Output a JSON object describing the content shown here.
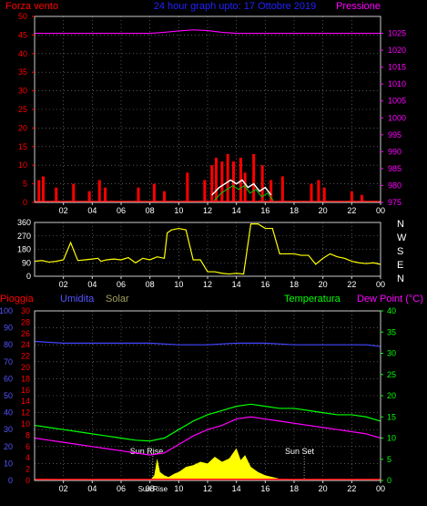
{
  "panel_top": {
    "label_left": "Forza vento",
    "title": "24 hour graph upto: 17 Ottobre 2019",
    "label_right": "Pressione"
  },
  "panel_mid": {
    "compass": [
      "N",
      "W",
      "S",
      "E",
      "N"
    ]
  },
  "panel_bottom": {
    "label_rain": "Pioggia",
    "label_humidity": "Umidita",
    "label_solar": "Solar",
    "label_temperature": "Temperatura",
    "label_dewpoint": "Dew Point (°C)",
    "sunrise": "Sun Rise",
    "sunset": "Sun Set",
    "sunrise_time_label": "Sun Rise"
  },
  "colors": {
    "wind": "#ff0000",
    "gust": "#ffffff",
    "wind_alt": "#00cc00",
    "pressure": "#ff00ff",
    "direction": "#ffff00",
    "rain": "#ff0000",
    "humidity": "#4444ff",
    "solar": "#ffff00",
    "temperature": "#00ff00",
    "dewpoint": "#ff00ff",
    "grid": "#888888"
  },
  "chart_data": [
    {
      "type": "line",
      "title": "24 hour graph upto: 17 Ottobre 2019",
      "ylabel_left": "Forza vento",
      "ylabel_right": "Pressione",
      "x_ticks": [
        "02",
        "04",
        "06",
        "08",
        "10",
        "12",
        "14",
        "16",
        "18",
        "20",
        "22",
        "00"
      ],
      "ylim_left": [
        0,
        50
      ],
      "y_ticks_left": [
        0,
        5,
        10,
        15,
        20,
        25,
        30,
        35,
        40,
        45,
        50
      ],
      "ylim_right": [
        975,
        1030
      ],
      "y_ticks_right": [
        975,
        980,
        985,
        990,
        995,
        1000,
        1005,
        1010,
        1015,
        1020,
        1025
      ],
      "grid": true,
      "series": [
        {
          "name": "Pressione",
          "axis": "right",
          "x": [
            0,
            2,
            4,
            6,
            8,
            9,
            10,
            11,
            12,
            13,
            14,
            16,
            18,
            20,
            22,
            24
          ],
          "values": [
            1025,
            1025,
            1025,
            1025,
            1025,
            1025.3,
            1025.7,
            1026,
            1025.8,
            1025.3,
            1025,
            1025,
            1025,
            1025,
            1025,
            1025
          ]
        }
      ],
      "wind_gust_bars": {
        "x": [
          0.3,
          0.6,
          1.5,
          2.7,
          3.8,
          4.5,
          4.9,
          7.2,
          8.3,
          9.0,
          10.6,
          11.8,
          12.3,
          12.6,
          13.0,
          13.4,
          13.8,
          14.3,
          14.6,
          15.2,
          15.8,
          16.4,
          17.2,
          19.2,
          19.7,
          20.1,
          22.0,
          22.7
        ],
        "values": [
          6,
          7,
          4,
          5,
          3,
          6,
          4,
          4,
          5,
          3,
          8,
          6,
          10,
          12,
          11,
          13,
          11,
          12,
          8,
          13,
          10,
          6,
          7,
          5,
          6,
          4,
          3,
          2
        ]
      },
      "wind_avg_white": {
        "x": [
          12.3,
          12.8,
          13.2,
          13.6,
          14.0,
          14.4,
          14.8,
          15.2,
          15.6,
          16.0,
          16.4
        ],
        "values": [
          2,
          4,
          5,
          6,
          5,
          6,
          4,
          5,
          3,
          4,
          2
        ]
      }
    },
    {
      "type": "line",
      "name": "Direzione vento",
      "x_ticks": [
        "02",
        "04",
        "06",
        "08",
        "10",
        "12",
        "14",
        "16",
        "18",
        "20",
        "22",
        "00"
      ],
      "ylim": [
        0,
        360
      ],
      "y_ticks": [
        0,
        90,
        180,
        270,
        360
      ],
      "grid": true,
      "series": [
        {
          "name": "direction",
          "x": [
            0,
            0.5,
            1,
            1.5,
            2,
            2.5,
            3,
            3.5,
            4,
            4.4,
            4.6,
            5,
            5.5,
            6,
            6.5,
            7,
            7.5,
            8,
            8.5,
            9,
            9.2,
            9.5,
            10,
            10.5,
            11,
            11.5,
            12,
            12.5,
            13,
            13.5,
            14,
            14.5,
            15,
            15.5,
            16,
            16.5,
            17,
            17.5,
            18,
            18.5,
            19,
            19.5,
            20,
            20.5,
            21,
            21.5,
            22,
            22.5,
            23,
            23.5,
            24
          ],
          "values": [
            100,
            105,
            95,
            100,
            110,
            225,
            105,
            110,
            115,
            120,
            100,
            110,
            115,
            110,
            125,
            90,
            120,
            110,
            130,
            120,
            290,
            310,
            320,
            310,
            110,
            110,
            30,
            30,
            20,
            15,
            20,
            15,
            350,
            350,
            320,
            320,
            150,
            150,
            150,
            140,
            140,
            80,
            120,
            150,
            130,
            120,
            100,
            90,
            85,
            90,
            80
          ]
        }
      ]
    },
    {
      "type": "line",
      "x_ticks": [
        "02",
        "04",
        "06",
        "08",
        "10",
        "12",
        "14",
        "16",
        "18",
        "20",
        "22",
        "00"
      ],
      "ylim_humidity": [
        0,
        100
      ],
      "y_ticks_humidity": [
        0,
        10,
        20,
        30,
        40,
        50,
        60,
        70,
        80,
        90,
        100
      ],
      "ylim_rain": [
        0,
        30
      ],
      "y_ticks_rain": [
        0,
        2,
        4,
        6,
        8,
        10,
        12,
        14,
        16,
        18,
        20,
        22,
        24,
        26,
        28,
        30
      ],
      "ylim_temp": [
        0,
        40
      ],
      "y_ticks_temp": [
        0,
        5,
        10,
        15,
        20,
        25,
        30,
        35,
        40
      ],
      "grid": true,
      "series": [
        {
          "name": "Umidita",
          "axis": "humidity",
          "x": [
            0,
            2,
            4,
            6,
            8,
            10,
            12,
            14,
            15,
            16,
            18,
            20,
            22,
            23,
            24
          ],
          "values": [
            82,
            81,
            81,
            81,
            81,
            80,
            80,
            81,
            81,
            81,
            80,
            80,
            80,
            80,
            79
          ]
        },
        {
          "name": "Temperatura",
          "axis": "temp",
          "x": [
            0,
            1,
            2,
            3,
            4,
            5,
            6,
            7,
            8,
            9,
            10,
            11,
            12,
            13,
            14,
            15,
            16,
            17,
            18,
            19,
            20,
            21,
            22,
            23,
            24
          ],
          "values": [
            13,
            12.5,
            12,
            11.5,
            11,
            10.5,
            10,
            9.5,
            9.3,
            10,
            12,
            14,
            15.5,
            16.5,
            17.5,
            18,
            17.5,
            17,
            17,
            16.5,
            16,
            15.5,
            15.5,
            15,
            14
          ]
        },
        {
          "name": "Dew Point",
          "axis": "temp",
          "x": [
            0,
            1,
            2,
            3,
            4,
            5,
            6,
            7,
            8,
            9,
            10,
            11,
            12,
            13,
            14,
            15,
            16,
            17,
            18,
            19,
            20,
            21,
            22,
            23,
            24
          ],
          "values": [
            10,
            9.5,
            9,
            8.5,
            8,
            7.5,
            7,
            6.5,
            6,
            6.5,
            8.5,
            10.5,
            12,
            13,
            14.5,
            15,
            14.5,
            14,
            13.5,
            13,
            12.5,
            12,
            11.5,
            11,
            10
          ]
        },
        {
          "name": "Solar",
          "axis": "humidity",
          "x": [
            8.0,
            8.3,
            8.5,
            8.7,
            9.0,
            9.3,
            9.7,
            10,
            10.5,
            11,
            11.5,
            12,
            12.5,
            13,
            13.5,
            14,
            14.3,
            14.6,
            15,
            15.5,
            16,
            16.5,
            17,
            17.3
          ],
          "values": [
            0,
            3,
            13,
            5,
            3,
            2,
            4,
            5,
            8,
            9,
            11,
            10,
            14,
            11,
            13,
            19,
            12,
            15,
            8,
            5,
            3,
            2,
            1,
            0
          ]
        },
        {
          "name": "Pioggia",
          "axis": "rain",
          "x": [
            0,
            24
          ],
          "values": [
            0,
            0
          ]
        }
      ],
      "annotations": [
        {
          "text": "Sun Rise",
          "x": 8.2
        },
        {
          "text": "Sun Set",
          "x": 18.7
        }
      ]
    }
  ]
}
